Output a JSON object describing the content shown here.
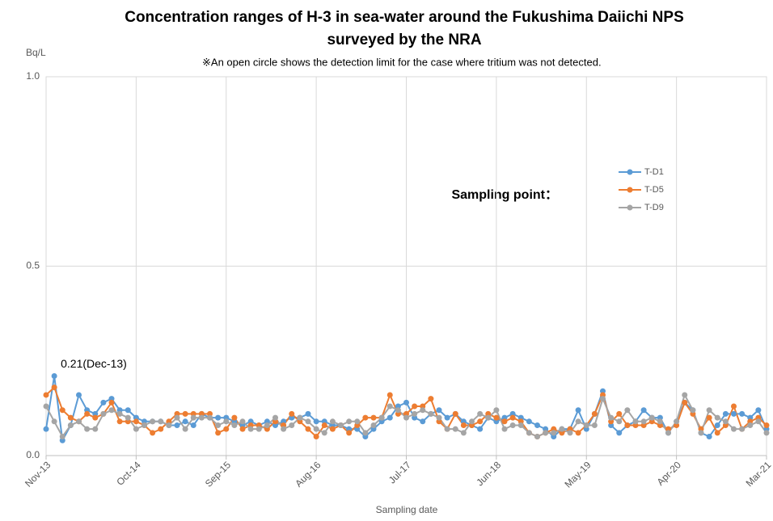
{
  "chart_data": {
    "type": "line",
    "title": "Concentration ranges of H-3 in sea-water around the Fukushima Daiichi NPS surveyed by the NRA",
    "subtitle": "※An open circle shows the detection limit for the case where tritium was not detected.",
    "y_label": "Bq/L",
    "x_label": "Sampling date",
    "legend_title": "Sampling point：",
    "annotations": [
      {
        "text": "0.21(Dec-13)"
      }
    ],
    "ylim": [
      0,
      1
    ],
    "yticks": [
      {
        "value": 0,
        "label": "0.0"
      },
      {
        "value": 0.5,
        "label": "0.5"
      },
      {
        "value": 1,
        "label": "1.0"
      }
    ],
    "xticks": [
      "Nov-13",
      "Oct-14",
      "Sep-15",
      "Aug-16",
      "Jul-17",
      "Jun-18",
      "May-19",
      "Apr-20",
      "Mar-21"
    ],
    "grid": true,
    "x": [
      "Nov-13",
      "Dec-13",
      "Jan-14",
      "Feb-14",
      "Mar-14",
      "Apr-14",
      "May-14",
      "Jun-14",
      "Jul-14",
      "Aug-14",
      "Sep-14",
      "Oct-14",
      "Nov-14",
      "Dec-14",
      "Jan-15",
      "Feb-15",
      "Mar-15",
      "Apr-15",
      "May-15",
      "Jun-15",
      "Jul-15",
      "Aug-15",
      "Sep-15",
      "Oct-15",
      "Nov-15",
      "Dec-15",
      "Jan-16",
      "Feb-16",
      "Mar-16",
      "Apr-16",
      "May-16",
      "Jun-16",
      "Jul-16",
      "Aug-16",
      "Sep-16",
      "Oct-16",
      "Nov-16",
      "Dec-16",
      "Jan-17",
      "Feb-17",
      "Mar-17",
      "Apr-17",
      "May-17",
      "Jun-17",
      "Jul-17",
      "Aug-17",
      "Sep-17",
      "Oct-17",
      "Nov-17",
      "Dec-17",
      "Jan-18",
      "Feb-18",
      "Mar-18",
      "Apr-18",
      "May-18",
      "Jun-18",
      "Jul-18",
      "Aug-18",
      "Sep-18",
      "Oct-18",
      "Nov-18",
      "Dec-18",
      "Jan-19",
      "Feb-19",
      "Mar-19",
      "Apr-19",
      "May-19",
      "Jun-19",
      "Jul-19",
      "Aug-19",
      "Sep-19",
      "Oct-19",
      "Nov-19",
      "Dec-19",
      "Jan-20",
      "Feb-20",
      "Mar-20",
      "Apr-20",
      "May-20",
      "Jun-20",
      "Jul-20",
      "Aug-20",
      "Sep-20",
      "Oct-20",
      "Nov-20",
      "Dec-20",
      "Jan-21",
      "Feb-21",
      "Mar-21"
    ],
    "series": [
      {
        "name": "T-D1",
        "color": "#5b9bd5",
        "values": [
          0.07,
          0.21,
          0.04,
          0.08,
          0.16,
          0.12,
          0.11,
          0.14,
          0.15,
          0.12,
          0.12,
          0.1,
          0.09,
          0.09,
          0.09,
          0.08,
          0.08,
          0.09,
          0.08,
          0.11,
          0.1,
          0.1,
          0.1,
          0.09,
          0.08,
          0.09,
          0.08,
          0.09,
          0.08,
          0.09,
          0.1,
          0.1,
          0.11,
          0.09,
          0.09,
          0.08,
          0.08,
          0.07,
          0.07,
          0.05,
          0.07,
          0.09,
          0.1,
          0.13,
          0.14,
          0.1,
          0.09,
          0.11,
          0.12,
          0.1,
          0.11,
          0.09,
          0.08,
          0.07,
          0.1,
          0.09,
          0.1,
          0.11,
          0.1,
          0.09,
          0.08,
          0.07,
          0.05,
          0.07,
          0.07,
          0.12,
          0.07,
          0.11,
          0.17,
          0.08,
          0.06,
          0.08,
          0.09,
          0.12,
          0.1,
          0.1,
          0.06,
          0.09,
          0.14,
          0.12,
          0.06,
          0.05,
          0.08,
          0.11,
          0.11,
          0.11,
          0.1,
          0.12,
          0.07
        ]
      },
      {
        "name": "T-D5",
        "color": "#ed7d31",
        "values": [
          0.16,
          0.18,
          0.12,
          0.1,
          0.09,
          0.11,
          0.1,
          0.11,
          0.14,
          0.09,
          0.09,
          0.09,
          0.08,
          0.06,
          0.07,
          0.09,
          0.11,
          0.11,
          0.11,
          0.11,
          0.11,
          0.06,
          0.07,
          0.1,
          0.07,
          0.08,
          0.08,
          0.07,
          0.09,
          0.08,
          0.11,
          0.09,
          0.07,
          0.05,
          0.08,
          0.07,
          0.08,
          0.06,
          0.08,
          0.1,
          0.1,
          0.1,
          0.16,
          0.11,
          0.11,
          0.13,
          0.13,
          0.15,
          0.09,
          0.07,
          0.11,
          0.08,
          0.08,
          0.09,
          0.11,
          0.1,
          0.09,
          0.1,
          0.09,
          0.06,
          0.05,
          0.06,
          0.07,
          0.06,
          0.07,
          0.06,
          0.08,
          0.11,
          0.16,
          0.09,
          0.11,
          0.08,
          0.08,
          0.08,
          0.09,
          0.08,
          0.07,
          0.08,
          0.14,
          0.11,
          0.07,
          0.1,
          0.06,
          0.08,
          0.13,
          0.07,
          0.09,
          0.1,
          0.08
        ]
      },
      {
        "name": "T-D9",
        "color": "#a5a5a5",
        "values": [
          0.13,
          0.09,
          0.05,
          0.08,
          0.09,
          0.07,
          0.07,
          0.11,
          0.12,
          0.11,
          0.1,
          0.07,
          0.08,
          0.09,
          0.09,
          0.08,
          0.1,
          0.07,
          0.1,
          0.1,
          0.1,
          0.08,
          0.09,
          0.08,
          0.09,
          0.07,
          0.07,
          0.08,
          0.1,
          0.07,
          0.08,
          0.1,
          0.09,
          0.07,
          0.06,
          0.09,
          0.08,
          0.09,
          0.09,
          0.06,
          0.08,
          0.1,
          0.13,
          0.12,
          0.1,
          0.11,
          0.12,
          0.11,
          0.1,
          0.07,
          0.07,
          0.06,
          0.09,
          0.11,
          0.1,
          0.12,
          0.07,
          0.08,
          0.08,
          0.06,
          0.05,
          0.06,
          0.06,
          0.07,
          0.06,
          0.09,
          0.08,
          0.08,
          0.15,
          0.1,
          0.09,
          0.12,
          0.09,
          0.09,
          0.1,
          0.09,
          0.06,
          0.09,
          0.16,
          0.12,
          0.06,
          0.12,
          0.1,
          0.09,
          0.07,
          0.07,
          0.08,
          0.09,
          0.06
        ]
      }
    ]
  }
}
